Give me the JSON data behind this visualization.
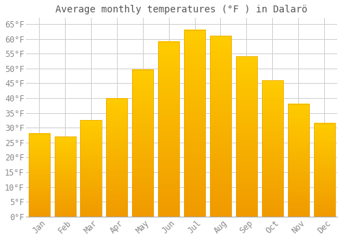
{
  "title": "Average monthly temperatures (°F ) in Dalarö",
  "months": [
    "Jan",
    "Feb",
    "Mar",
    "Apr",
    "May",
    "Jun",
    "Jul",
    "Aug",
    "Sep",
    "Oct",
    "Nov",
    "Dec"
  ],
  "values": [
    28,
    27,
    32.5,
    40,
    49.5,
    59,
    63,
    61,
    54,
    46,
    38,
    31.5
  ],
  "bar_color_top": "#FFC200",
  "bar_color_bottom": "#F0A000",
  "background_color": "#ffffff",
  "grid_color": "#cccccc",
  "text_color": "#888888",
  "title_color": "#555555",
  "ylim": [
    0,
    67
  ],
  "yticks": [
    0,
    5,
    10,
    15,
    20,
    25,
    30,
    35,
    40,
    45,
    50,
    55,
    60,
    65
  ],
  "title_fontsize": 10,
  "tick_fontsize": 8.5
}
